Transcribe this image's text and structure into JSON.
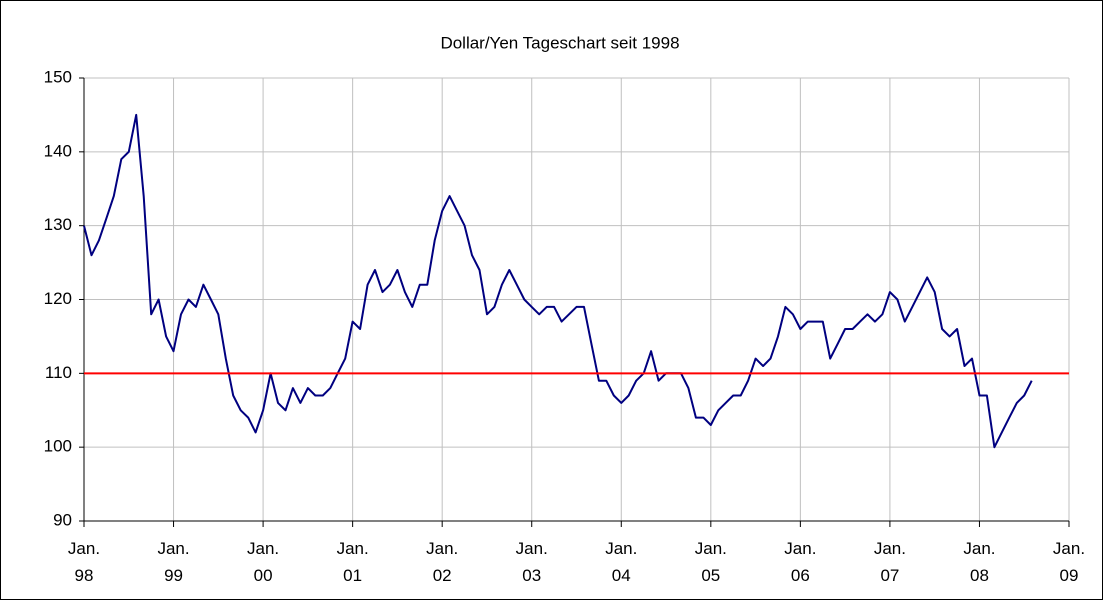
{
  "chart_data": {
    "type": "line",
    "title": "Dollar/Yen Tageschart seit 1998",
    "x": [
      "1998-01",
      "1998-02",
      "1998-03",
      "1998-04",
      "1998-05",
      "1998-06",
      "1998-07",
      "1998-08",
      "1998-09",
      "1998-10",
      "1998-11",
      "1998-12",
      "1999-01",
      "1999-02",
      "1999-03",
      "1999-04",
      "1999-05",
      "1999-06",
      "1999-07",
      "1999-08",
      "1999-09",
      "1999-10",
      "1999-11",
      "1999-12",
      "2000-01",
      "2000-02",
      "2000-03",
      "2000-04",
      "2000-05",
      "2000-06",
      "2000-07",
      "2000-08",
      "2000-09",
      "2000-10",
      "2000-11",
      "2000-12",
      "2001-01",
      "2001-02",
      "2001-03",
      "2001-04",
      "2001-05",
      "2001-06",
      "2001-07",
      "2001-08",
      "2001-09",
      "2001-10",
      "2001-11",
      "2001-12",
      "2002-01",
      "2002-02",
      "2002-03",
      "2002-04",
      "2002-05",
      "2002-06",
      "2002-07",
      "2002-08",
      "2002-09",
      "2002-10",
      "2002-11",
      "2002-12",
      "2003-01",
      "2003-02",
      "2003-03",
      "2003-04",
      "2003-05",
      "2003-06",
      "2003-07",
      "2003-08",
      "2003-09",
      "2003-10",
      "2003-11",
      "2003-12",
      "2004-01",
      "2004-02",
      "2004-03",
      "2004-04",
      "2004-05",
      "2004-06",
      "2004-07",
      "2004-08",
      "2004-09",
      "2004-10",
      "2004-11",
      "2004-12",
      "2005-01",
      "2005-02",
      "2005-03",
      "2005-04",
      "2005-05",
      "2005-06",
      "2005-07",
      "2005-08",
      "2005-09",
      "2005-10",
      "2005-11",
      "2005-12",
      "2006-01",
      "2006-02",
      "2006-03",
      "2006-04",
      "2006-05",
      "2006-06",
      "2006-07",
      "2006-08",
      "2006-09",
      "2006-10",
      "2006-11",
      "2006-12",
      "2007-01",
      "2007-02",
      "2007-03",
      "2007-04",
      "2007-05",
      "2007-06",
      "2007-07",
      "2007-08",
      "2007-09",
      "2007-10",
      "2007-11",
      "2007-12",
      "2008-01",
      "2008-02",
      "2008-03",
      "2008-04",
      "2008-05",
      "2008-06",
      "2008-07",
      "2008-08"
    ],
    "series": [
      {
        "color": "#000080",
        "values": [
          130,
          126,
          128,
          131,
          134,
          139,
          140,
          145,
          134,
          118,
          120,
          115,
          113,
          118,
          120,
          119,
          122,
          120,
          118,
          112,
          107,
          105,
          104,
          102,
          105,
          110,
          106,
          105,
          108,
          106,
          108,
          107,
          107,
          108,
          110,
          112,
          117,
          116,
          122,
          124,
          121,
          122,
          124,
          121,
          119,
          122,
          122,
          128,
          132,
          134,
          132,
          130,
          126,
          124,
          118,
          119,
          122,
          124,
          122,
          120,
          119,
          118,
          119,
          119,
          117,
          118,
          119,
          119,
          114,
          109,
          109,
          107,
          106,
          107,
          109,
          110,
          113,
          109,
          110,
          110,
          110,
          108,
          104,
          104,
          103,
          105,
          106,
          107,
          107,
          109,
          112,
          111,
          112,
          115,
          119,
          118,
          116,
          117,
          117,
          117,
          112,
          114,
          116,
          116,
          117,
          118,
          117,
          118,
          121,
          120,
          117,
          119,
          121,
          123,
          121,
          116,
          115,
          116,
          111,
          112,
          107,
          107,
          100,
          102,
          104,
          106,
          107,
          109
        ]
      }
    ],
    "reference_line": {
      "value": 110,
      "color": "#ff0000"
    },
    "xlim": [
      "1998-01",
      "2009-01"
    ],
    "xticks": [
      {
        "value": "1998-01",
        "label": [
          "Jan.",
          "98"
        ]
      },
      {
        "value": "1999-01",
        "label": [
          "Jan.",
          "99"
        ]
      },
      {
        "value": "2000-01",
        "label": [
          "Jan.",
          "00"
        ]
      },
      {
        "value": "2001-01",
        "label": [
          "Jan.",
          "01"
        ]
      },
      {
        "value": "2002-01",
        "label": [
          "Jan.",
          "02"
        ]
      },
      {
        "value": "2003-01",
        "label": [
          "Jan.",
          "03"
        ]
      },
      {
        "value": "2004-01",
        "label": [
          "Jan.",
          "04"
        ]
      },
      {
        "value": "2005-01",
        "label": [
          "Jan.",
          "05"
        ]
      },
      {
        "value": "2006-01",
        "label": [
          "Jan.",
          "06"
        ]
      },
      {
        "value": "2007-01",
        "label": [
          "Jan.",
          "07"
        ]
      },
      {
        "value": "2008-01",
        "label": [
          "Jan.",
          "08"
        ]
      },
      {
        "value": "2009-01",
        "label": [
          "Jan.",
          "09"
        ]
      }
    ],
    "ylim": [
      90,
      150
    ],
    "yticks": [
      90,
      100,
      110,
      120,
      130,
      140,
      150
    ],
    "grid": true
  }
}
